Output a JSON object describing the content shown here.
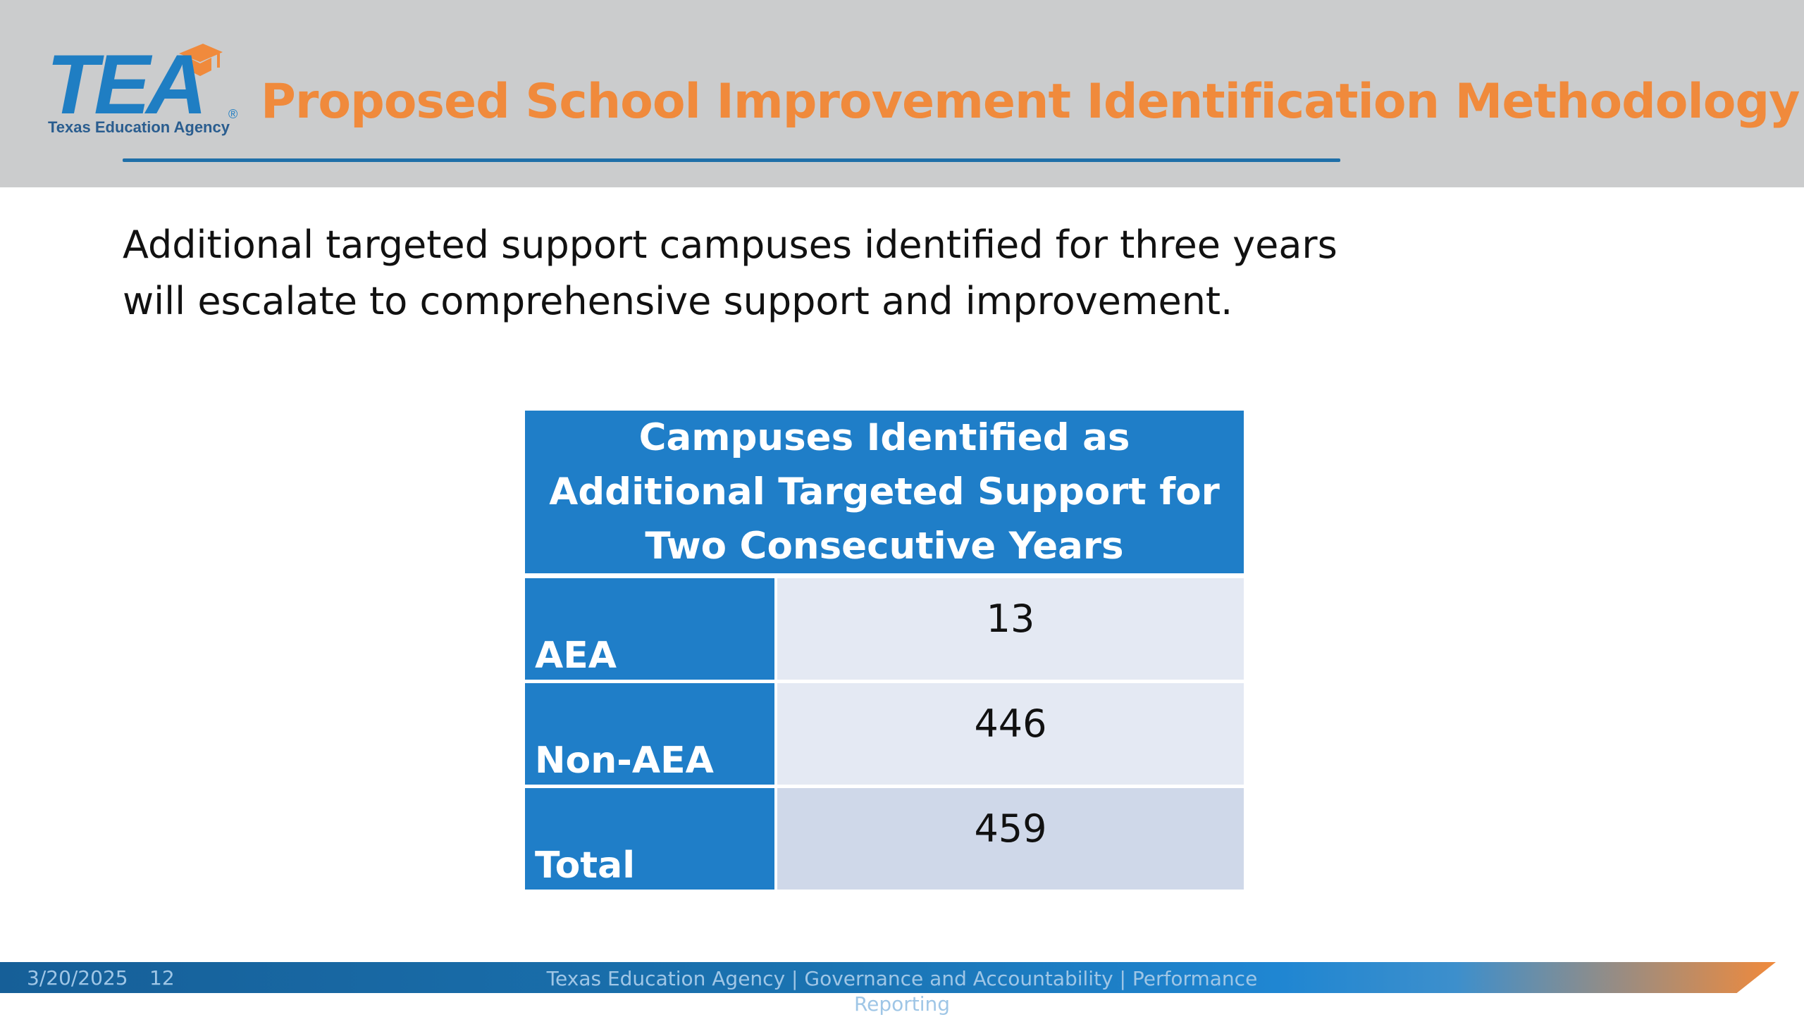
{
  "header": {
    "logo": {
      "wordmark": "TEA",
      "registered_mark": "®",
      "subtitle": "Texas Education Agency"
    },
    "title": "Proposed School Improvement Identification Methodology"
  },
  "body": {
    "intro_lines": [
      "Additional targeted support campuses identified for three years",
      "will escalate to comprehensive support and improvement."
    ]
  },
  "table": {
    "header": "Campuses Identified as Additional Targeted Support for Two Consecutive Years",
    "rows": [
      {
        "label": "AEA",
        "value": "13"
      },
      {
        "label": "Non-AEA",
        "value": "446"
      },
      {
        "label": "Total",
        "value": "459"
      }
    ]
  },
  "footer": {
    "date": "3/20/2025",
    "page_number": "12",
    "organization": "Texas Education Agency | Governance and Accountability | Performance Reporting"
  },
  "colors": {
    "title_orange": "#f08a3c",
    "brand_blue": "#1f7ec8",
    "header_gray": "#cbcccd",
    "cell_light": "#e4e9f3",
    "cell_total": "#cfd8e9"
  }
}
